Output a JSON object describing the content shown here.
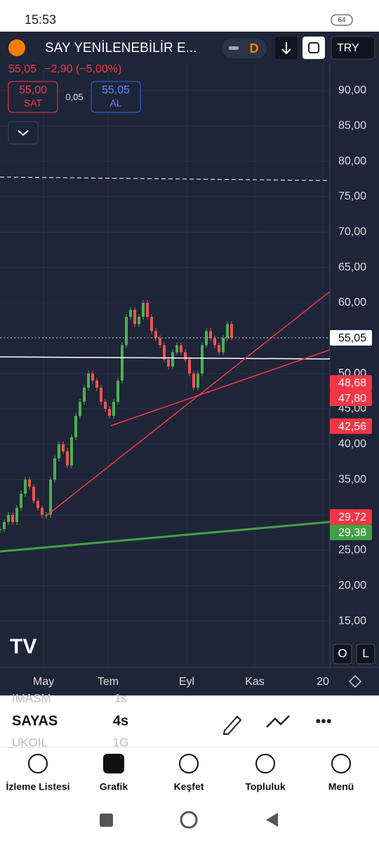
{
  "status_bar": {
    "time": "15:53",
    "battery": "64"
  },
  "header": {
    "symbol": "SAY YENİLENEBİLİR E...",
    "interval_badge": "D",
    "currency": "TRY",
    "last_price": "55,05",
    "change": "−2,90 (−5,00%)"
  },
  "trade": {
    "sell_price": "55,00",
    "sell_label": "SAT",
    "spread": "0,05",
    "buy_price": "55,05",
    "buy_label": "AL"
  },
  "chart_data": {
    "type": "candlestick",
    "x_labels": [
      "May",
      "Tem",
      "Eyl",
      "Kas",
      "20"
    ],
    "ylim": [
      8.45,
      98.34
    ],
    "yticks": [
      {
        "value": 15,
        "label": "15,00"
      },
      {
        "value": 20,
        "label": "20,00"
      },
      {
        "value": 25,
        "label": "25,00"
      },
      {
        "value": 30,
        "label": "30,00"
      },
      {
        "value": 35,
        "label": "35,00"
      },
      {
        "value": 40,
        "label": "40,00"
      },
      {
        "value": 45,
        "label": "45,00"
      },
      {
        "value": 50,
        "label": "50,00"
      },
      {
        "value": 55,
        "label": "55,00"
      },
      {
        "value": 60,
        "label": "60,00"
      },
      {
        "value": 65,
        "label": "65,00"
      },
      {
        "value": 70,
        "label": "70,00"
      },
      {
        "value": 75,
        "label": "75,00"
      },
      {
        "value": 80,
        "label": "80,00"
      },
      {
        "value": 85,
        "label": "85,00"
      },
      {
        "value": 90,
        "label": "90,00"
      }
    ],
    "closes": [
      28,
      29,
      30,
      29,
      31,
      33,
      35,
      34,
      32,
      31,
      30,
      30,
      35,
      38,
      40,
      39,
      37,
      41,
      44,
      46,
      48,
      50,
      49,
      48,
      46,
      45,
      44,
      46,
      49,
      54,
      58,
      59,
      57,
      58,
      60,
      58,
      56,
      55,
      54,
      52,
      51,
      53,
      54,
      53,
      52,
      50,
      48,
      50,
      54,
      56,
      55,
      54,
      53,
      55,
      57,
      55.05
    ],
    "up_color": "#4caf50",
    "down_color": "#ef5350",
    "price_tags": [
      {
        "value": 55.05,
        "label": "55,05",
        "color": "#ffffff"
      },
      {
        "value": 48.68,
        "label": "48,68",
        "color": "#f23645"
      },
      {
        "value": 47.8,
        "label": "47,80",
        "color": "#f23645"
      },
      {
        "value": 42.56,
        "label": "42,56",
        "color": "#f23645"
      },
      {
        "value": 29.72,
        "label": "29,72",
        "color": "#f23645"
      },
      {
        "value": 29.38,
        "label": "29,38",
        "color": "#43a047"
      }
    ],
    "scale_buttons": [
      "O",
      "L"
    ]
  },
  "watchlist": [
    {
      "symbol": "IMASM",
      "interval": "1s"
    },
    {
      "symbol": "SAYAS",
      "interval": "4s"
    },
    {
      "symbol": "UKOIL",
      "interval": "1G"
    }
  ],
  "nav": [
    "İzleme Listesi",
    "Grafik",
    "Keşfet",
    "Topluluk",
    "Menü"
  ]
}
